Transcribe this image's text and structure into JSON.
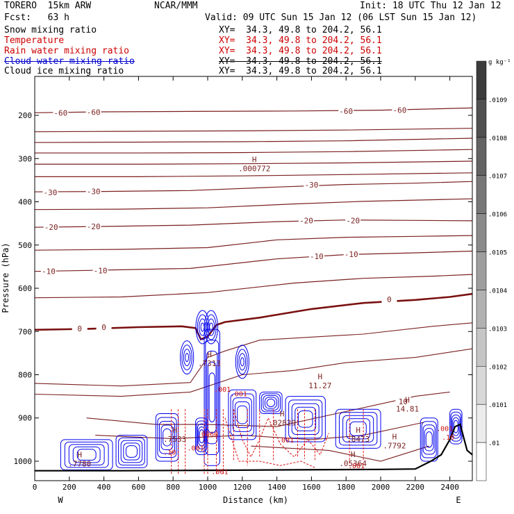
{
  "header": {
    "model": "TORERO  15km ARW",
    "center": "NCAR/MMM",
    "init": "Init: 18 UTC Thu 12 Jan 12",
    "fcst": "Fcst:   63 h",
    "valid": "Valid: 09 UTC Sun 15 Jan 12 (06 LST Sun 15 Jan 12)"
  },
  "legend": [
    {
      "label": "Snow mixing ratio",
      "xy": "XY=  34.3, 49.8 to 204.2, 56.1",
      "color": "#000000",
      "xy_color": "#000000"
    },
    {
      "label": "Temperature",
      "xy": "XY=  34.3, 49.8 to 204.2, 56.1",
      "color": "#cc0000",
      "xy_color": "#cc0000"
    },
    {
      "label": "Rain water mixing ratio",
      "xy": "XY=  34.3, 49.8 to 204.2, 56.1",
      "color": "#cc0000",
      "xy_color": "#cc0000"
    },
    {
      "label": "Cloud water mixing ratio",
      "xy": "XY=  34.3, 49.8 to 204.2, 56.1",
      "color": "#0000cc",
      "xy_color": "#000000"
    },
    {
      "label": "Cloud ice mixing ratio",
      "xy": "XY=  34.3, 49.8 to 204.2, 56.1",
      "color": "#000000",
      "xy_color": "#000000"
    }
  ],
  "colors": {
    "temperature": "#7a1f1f",
    "zero_isotherm": "#7a1010",
    "rain": "#dd1111",
    "cloud": "#0000ee",
    "terrain": "#000000"
  },
  "chart_data": {
    "type": "cross-section contour",
    "xlabel": "Distance (km)",
    "ylabel": "Pressure (hPa)",
    "xlim": [
      0,
      2530
    ],
    "ylim": [
      1045,
      110
    ],
    "x_ticks": [
      0,
      200,
      400,
      600,
      800,
      1000,
      1200,
      1400,
      1600,
      1800,
      2000,
      2200,
      2400
    ],
    "y_ticks": [
      200,
      300,
      400,
      500,
      600,
      700,
      800,
      900,
      1000
    ],
    "left_end": "W",
    "right_end": "E",
    "colorbar": {
      "unit": "g kg⁻¹",
      "labels": [
        ".0109",
        ".0108",
        ".0107",
        ".0106",
        ".0105",
        ".0104",
        ".0103",
        ".0102",
        ".0101",
        ".01"
      ]
    },
    "temperature_contour_labels": [
      {
        "text": "-60",
        "x": 150,
        "p": 194
      },
      {
        "text": "-60",
        "x": 340,
        "p": 193
      },
      {
        "text": "-60",
        "x": 1800,
        "p": 190
      },
      {
        "text": "-60",
        "x": 2110,
        "p": 188
      },
      {
        "text": "-30",
        "x": 90,
        "p": 378
      },
      {
        "text": "-30",
        "x": 340,
        "p": 376
      },
      {
        "text": "-30",
        "x": 1600,
        "p": 361
      },
      {
        "text": "-20",
        "x": 95,
        "p": 459
      },
      {
        "text": "-20",
        "x": 340,
        "p": 457
      },
      {
        "text": "-20",
        "x": 1570,
        "p": 443
      },
      {
        "text": "-20",
        "x": 1840,
        "p": 443
      },
      {
        "text": "-10",
        "x": 80,
        "p": 561
      },
      {
        "text": "-10",
        "x": 380,
        "p": 559
      },
      {
        "text": "-10",
        "x": 1630,
        "p": 526
      },
      {
        "text": "-10",
        "x": 1830,
        "p": 521
      },
      {
        "text": "0",
        "x": 260,
        "p": 693
      },
      {
        "text": "0",
        "x": 400,
        "p": 690
      },
      {
        "text": "0",
        "x": 2050,
        "p": 626
      },
      {
        "text": "10",
        "x": 2130,
        "p": 862
      }
    ],
    "maxima_labels": [
      {
        "marker": "H",
        "value": ".000772",
        "x": 1270,
        "p": 318
      },
      {
        "marker": "H",
        "value": "11.27",
        "x": 1650,
        "p": 820
      },
      {
        "marker": "H",
        "value": "14.81",
        "x": 2155,
        "p": 874
      },
      {
        "marker": "H",
        "value": ".7533",
        "x": 810,
        "p": 944
      },
      {
        "marker": "H",
        "value": ".02829",
        "x": 1430,
        "p": 906
      },
      {
        "marker": "H",
        "value": ".7313",
        "x": 1010,
        "p": 769
      },
      {
        "marker": "H",
        "value": ".8473",
        "x": 1870,
        "p": 944
      },
      {
        "marker": "H",
        "value": ".05364",
        "x": 1840,
        "p": 1000
      },
      {
        "marker": "H",
        "value": ".7792",
        "x": 2080,
        "p": 959
      },
      {
        "marker": "H",
        "value": ".7780",
        "x": 260,
        "p": 1001
      }
    ],
    "contour_value_labels": [
      {
        "text": ".001",
        "x": 1085,
        "p": 839
      },
      {
        "text": ".001",
        "x": 1180,
        "p": 850
      },
      {
        "text": ".001",
        "x": 1450,
        "p": 957
      },
      {
        "text": ".001",
        "x": 2370,
        "p": 930
      },
      {
        "text": ".001",
        "x": 930,
        "p": 975
      },
      {
        "text": ".001",
        "x": 1860,
        "p": 1016
      },
      {
        "text": ".001",
        "x": 1070,
        "p": 1030
      },
      {
        "text": ".0060",
        "x": 1000,
        "p": 943
      },
      {
        "text": ".10",
        "x": 2390,
        "p": 950
      },
      {
        "text": ".10",
        "x": 780,
        "p": 985
      }
    ],
    "temperature_isotherms": [
      {
        "value": -60,
        "points": [
          [
            0,
            194
          ],
          [
            400,
            192
          ],
          [
            900,
            191
          ],
          [
            1500,
            190
          ],
          [
            2000,
            188
          ],
          [
            2530,
            183
          ]
        ]
      },
      {
        "value": -55,
        "points": [
          [
            0,
            238
          ],
          [
            500,
            237
          ],
          [
            1200,
            236
          ],
          [
            1800,
            234
          ],
          [
            2530,
            230
          ]
        ]
      },
      {
        "value": -50,
        "points": [
          [
            0,
            263
          ],
          [
            600,
            262
          ],
          [
            1200,
            261
          ],
          [
            1800,
            259
          ],
          [
            2530,
            253
          ]
        ]
      },
      {
        "value": -45,
        "points": [
          [
            0,
            287
          ],
          [
            600,
            287
          ],
          [
            1200,
            286
          ],
          [
            1800,
            284
          ],
          [
            2530,
            279
          ]
        ]
      },
      {
        "value": -40,
        "points": [
          [
            0,
            313
          ],
          [
            600,
            313
          ],
          [
            1200,
            312
          ],
          [
            1800,
            310
          ],
          [
            2530,
            306
          ]
        ]
      },
      {
        "value": -35,
        "points": [
          [
            0,
            342
          ],
          [
            600,
            342
          ],
          [
            1200,
            340
          ],
          [
            1800,
            337
          ],
          [
            2530,
            333
          ]
        ]
      },
      {
        "value": -30,
        "points": [
          [
            0,
            377
          ],
          [
            400,
            376
          ],
          [
            900,
            374
          ],
          [
            1400,
            366
          ],
          [
            1800,
            360
          ],
          [
            2200,
            357
          ],
          [
            2530,
            353
          ]
        ]
      },
      {
        "value": -25,
        "points": [
          [
            0,
            418
          ],
          [
            500,
            417
          ],
          [
            1000,
            414
          ],
          [
            1500,
            405
          ],
          [
            1900,
            399
          ],
          [
            2530,
            393
          ]
        ]
      },
      {
        "value": -20,
        "points": [
          [
            0,
            459
          ],
          [
            400,
            457
          ],
          [
            900,
            454
          ],
          [
            1400,
            446
          ],
          [
            1800,
            442
          ],
          [
            2200,
            443
          ],
          [
            2530,
            444
          ]
        ]
      },
      {
        "value": -15,
        "points": [
          [
            0,
            512
          ],
          [
            500,
            510
          ],
          [
            1000,
            506
          ],
          [
            1400,
            488
          ],
          [
            1800,
            482
          ],
          [
            2200,
            480
          ],
          [
            2530,
            478
          ]
        ]
      },
      {
        "value": -10,
        "points": [
          [
            0,
            561
          ],
          [
            400,
            558
          ],
          [
            900,
            554
          ],
          [
            1400,
            532
          ],
          [
            1800,
            522
          ],
          [
            2200,
            518
          ],
          [
            2530,
            514
          ]
        ]
      },
      {
        "value": -5,
        "points": [
          [
            0,
            622
          ],
          [
            500,
            620
          ],
          [
            1000,
            610
          ],
          [
            1500,
            588
          ],
          [
            1900,
            577
          ],
          [
            2300,
            572
          ],
          [
            2530,
            568
          ]
        ]
      }
    ],
    "zero_isotherm": [
      [
        0,
        696
      ],
      [
        300,
        694
      ],
      [
        600,
        690
      ],
      [
        850,
        688
      ],
      [
        930,
        692
      ],
      [
        960,
        718
      ],
      [
        1000,
        712
      ],
      [
        1050,
        685
      ],
      [
        1100,
        678
      ],
      [
        1300,
        668
      ],
      [
        1600,
        648
      ],
      [
        1900,
        634
      ],
      [
        2200,
        627
      ],
      [
        2400,
        620
      ],
      [
        2530,
        613
      ]
    ],
    "terrain_surface": [
      [
        0,
        1022
      ],
      [
        500,
        1022
      ],
      [
        1000,
        1021
      ],
      [
        1500,
        1020
      ],
      [
        2000,
        1019
      ],
      [
        2200,
        1018
      ],
      [
        2290,
        1000
      ],
      [
        2350,
        985
      ],
      [
        2400,
        950
      ],
      [
        2430,
        920
      ],
      [
        2460,
        915
      ],
      [
        2480,
        945
      ],
      [
        2500,
        975
      ],
      [
        2530,
        985
      ]
    ]
  },
  "axis_titles": {
    "x": "Distance (km)",
    "y": "Pressure (hPa)"
  }
}
